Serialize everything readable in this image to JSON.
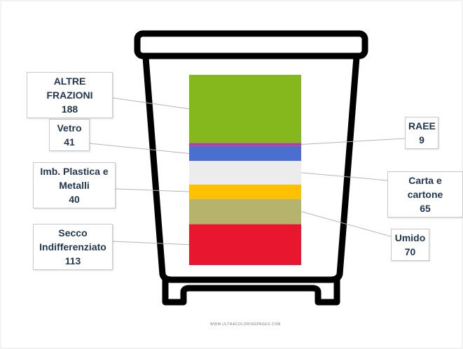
{
  "chart_data": {
    "type": "stacked-bar",
    "series": [
      {
        "name": "Secco Indifferenziato",
        "color": "#e8162f",
        "values": [
          113
        ]
      },
      {
        "name": "Umido",
        "color": "#b6b36d",
        "values": [
          70
        ]
      },
      {
        "name": "Imb. Plastica e Metalli",
        "color": "#ffc000",
        "values": [
          40
        ]
      },
      {
        "name": "Carta e cartone",
        "color": "#ececec",
        "values": [
          65
        ]
      },
      {
        "name": "Vetro",
        "color": "#4a6fcf",
        "values": [
          41
        ]
      },
      {
        "name": "RAEE",
        "color": "#b040a0",
        "values": [
          9
        ]
      },
      {
        "name": "ALTRE FRAZIONI",
        "color": "#84b81c",
        "values": [
          188
        ]
      }
    ]
  },
  "watermark": "WWW.ULTRACOLORINGPAGES.COM"
}
